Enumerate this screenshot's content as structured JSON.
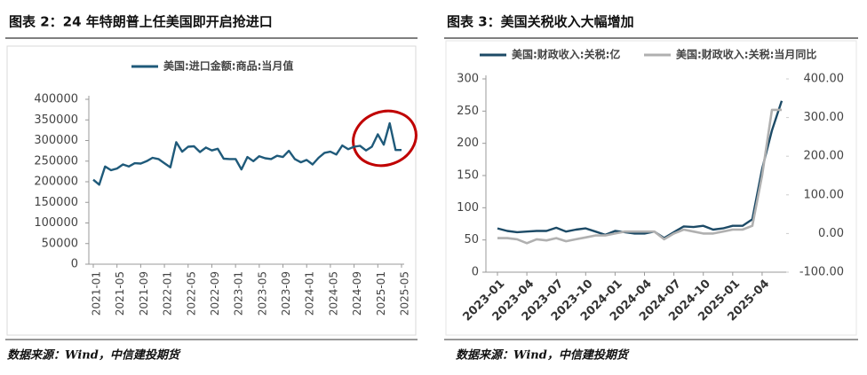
{
  "chart_data": [
    {
      "type": "line",
      "title": "图表 2：24 年特朗普上任美国即开启抢进口",
      "source": "数据来源：Wind，中信建投期货",
      "categories": [
        "2021-01",
        null,
        null,
        null,
        "2021-05",
        null,
        null,
        null,
        "2021-09",
        null,
        null,
        null,
        "2022-01",
        null,
        null,
        null,
        "2022-05",
        null,
        null,
        null,
        "2022-09",
        null,
        null,
        null,
        "2023-01",
        null,
        null,
        null,
        "2023-05",
        null,
        null,
        null,
        "2023-09",
        null,
        null,
        null,
        "2024-01",
        null,
        null,
        null,
        "2024-05",
        null,
        null,
        null,
        "2024-09",
        null,
        null,
        null,
        "2025-01",
        null,
        null,
        null,
        "2025-05"
      ],
      "series": [
        {
          "name": "美国:进口金额:商品:当月值",
          "color": "#1f5a7a",
          "values": [
            205000,
            193000,
            237000,
            228000,
            232000,
            242000,
            237000,
            245000,
            244000,
            250000,
            258000,
            255000,
            245000,
            235000,
            296000,
            273000,
            285000,
            286000,
            272000,
            283000,
            276000,
            280000,
            256000,
            255000,
            255000,
            230000,
            260000,
            250000,
            262000,
            257000,
            255000,
            263000,
            260000,
            275000,
            255000,
            247000,
            253000,
            242000,
            258000,
            270000,
            273000,
            266000,
            288000,
            279000,
            285000,
            287000,
            276000,
            285000,
            315000,
            290000,
            342000,
            277000,
            277000
          ]
        }
      ],
      "ylim": [
        0,
        400000
      ],
      "yticks": [
        0,
        50000,
        100000,
        150000,
        200000,
        250000,
        300000,
        350000,
        400000
      ],
      "grid": false
    },
    {
      "type": "line",
      "title": "图表 3：美国关税收入大幅增加",
      "source": "数据来源：Wind，中信建投期货",
      "categories": [
        "2023-01",
        null,
        null,
        "2023-04",
        null,
        null,
        "2023-07",
        null,
        null,
        "2023-10",
        null,
        null,
        "2024-01",
        null,
        null,
        "2024-04",
        null,
        null,
        "2024-07",
        null,
        null,
        "2024-10",
        null,
        null,
        "2025-01",
        null,
        null,
        "2025-04",
        null,
        null
      ],
      "series": [
        {
          "name": "美国:财政收入:关税:亿",
          "color": "#1c4a66",
          "values": [
            68,
            64,
            62,
            63,
            64,
            64,
            69,
            63,
            66,
            68,
            63,
            58,
            64,
            62,
            60,
            60,
            63,
            53,
            62,
            71,
            70,
            72,
            66,
            68,
            72,
            72,
            82,
            160,
            220,
            266
          ]
        },
        {
          "name": "美国:财政收入:关税:当月同比",
          "color": "#b0b0b0",
          "axis": "y2",
          "values": [
            -12,
            -12,
            -15,
            -25,
            -15,
            -18,
            -12,
            -20,
            -15,
            -10,
            -5,
            -5,
            0,
            5,
            5,
            5,
            5,
            -15,
            0,
            10,
            5,
            0,
            0,
            5,
            10,
            10,
            20,
            150,
            320,
            320
          ]
        }
      ],
      "ylim": [
        0,
        300
      ],
      "yticks": [
        0,
        50,
        100,
        150,
        200,
        250,
        300
      ],
      "y2lim": [
        -100,
        400
      ],
      "y2ticks": [
        {
          "value": -100,
          "label": "-100.00"
        },
        {
          "value": 0,
          "label": "0.00"
        },
        {
          "value": 100,
          "label": "100.00"
        },
        {
          "value": 200,
          "label": "200.00"
        },
        {
          "value": 300,
          "label": "300.00"
        },
        {
          "value": 400,
          "label": "400.00"
        }
      ],
      "grid": false
    }
  ]
}
